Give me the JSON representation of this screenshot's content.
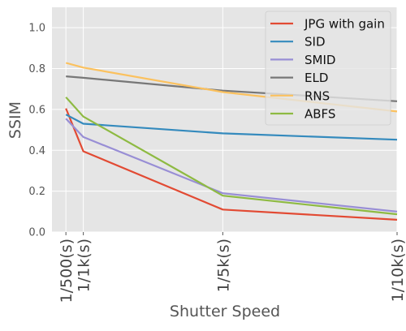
{
  "chart_data": {
    "type": "line",
    "title": "",
    "xlabel": "Shutter Speed",
    "ylabel": "SSIM",
    "x_ticks": [
      {
        "value": 500,
        "label": "1/500(s)"
      },
      {
        "value": 1000,
        "label": "1/1k(s)"
      },
      {
        "value": 5000,
        "label": "1/5k(s)"
      },
      {
        "value": 10000,
        "label": "1/10k(s)"
      }
    ],
    "xlim": [
      100,
      10000
    ],
    "ylim": [
      0,
      1.1
    ],
    "y_ticks": [
      0.0,
      0.2,
      0.4,
      0.6,
      0.8,
      1.0
    ],
    "y_tick_labels": [
      "0.0",
      "0.2",
      "0.4",
      "0.6",
      "0.8",
      "1.0"
    ],
    "x_scale": "linear",
    "grid": true,
    "legend_position": "top-right",
    "x": [
      500,
      1000,
      5000,
      10000
    ],
    "series": [
      {
        "name": "JPG with gain",
        "color": "#E24A33",
        "values": [
          0.605,
          0.395,
          0.11,
          0.06
        ]
      },
      {
        "name": "SID",
        "color": "#348ABD",
        "values": [
          0.575,
          0.53,
          0.483,
          0.452
        ]
      },
      {
        "name": "SMID",
        "color": "#988ED5",
        "values": [
          0.555,
          0.465,
          0.19,
          0.1
        ]
      },
      {
        "name": "ELD",
        "color": "#777777",
        "values": [
          0.762,
          0.755,
          0.692,
          0.64
        ]
      },
      {
        "name": "RNS",
        "color": "#FBC15E",
        "values": [
          0.828,
          0.805,
          0.685,
          0.59
        ]
      },
      {
        "name": "ABFS",
        "color": "#8EBA42",
        "values": [
          0.66,
          0.565,
          0.178,
          0.087
        ]
      }
    ]
  }
}
